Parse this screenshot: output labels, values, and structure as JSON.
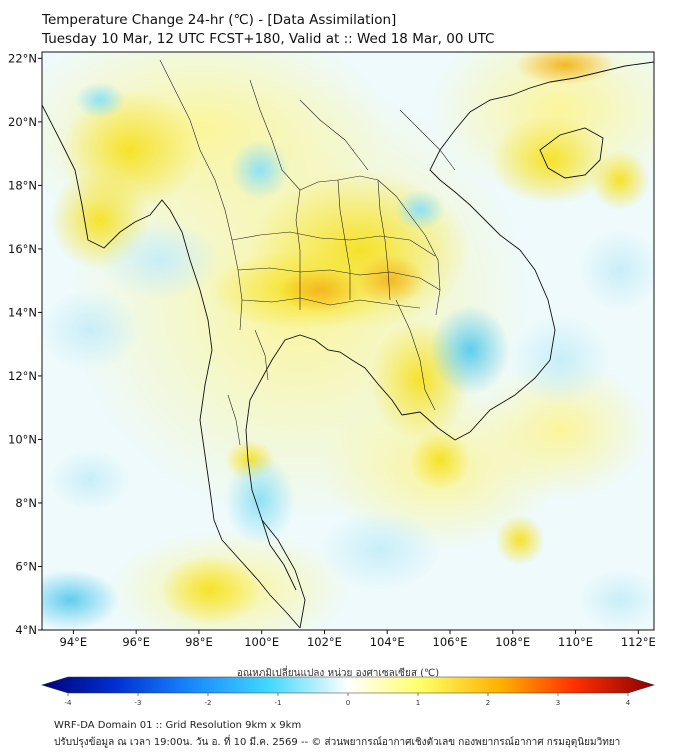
{
  "title": {
    "line1": "Temperature Change 24-hr (℃) - [Data Assimilation]",
    "line2": "Tuesday 10 Mar, 12 UTC FCST+180, Valid at :: Wed 18 Mar, 00 UTC"
  },
  "map": {
    "lat_labels": [
      "22°N",
      "20°N",
      "18°N",
      "16°N",
      "14°N",
      "12°N",
      "10°N",
      "8°N",
      "6°N",
      "4°N"
    ],
    "lon_labels": [
      "94°E",
      "96°E",
      "98°E",
      "100°E",
      "102°E",
      "104°E",
      "106°E",
      "108°E",
      "110°E",
      "112°E"
    ],
    "lat_range": [
      4,
      22.2
    ],
    "lon_range": [
      93.0,
      112.5
    ]
  },
  "colorbar": {
    "label": "อุณหภูมิเปลี่ยนแปลง หน่วย องศาเซลเซียส (℃)",
    "ticks": [
      "-4",
      "-3",
      "-2",
      "-1",
      "0",
      "1",
      "2",
      "3",
      "4"
    ],
    "range": [
      -4,
      4
    ],
    "colors": [
      "#00007a",
      "#0030d0",
      "#1a8cff",
      "#40d8ff",
      "#ffffff",
      "#ffff66",
      "#ffb000",
      "#ff3000",
      "#8a0000"
    ]
  },
  "footer": {
    "line1": "WRF-DA Domain 01 :: Grid Resolution 9km x 9km",
    "line2": "ปรับปรุงข้อมูล ณ เวลา 19:00น. วัน อ. ที่ 10 มี.ค. 2569 -- © ส่วนพยากรณ์อากาศเชิงตัวเลข กองพยากรณ์อากาศ กรมอุตุนิยมวิทยา"
  }
}
